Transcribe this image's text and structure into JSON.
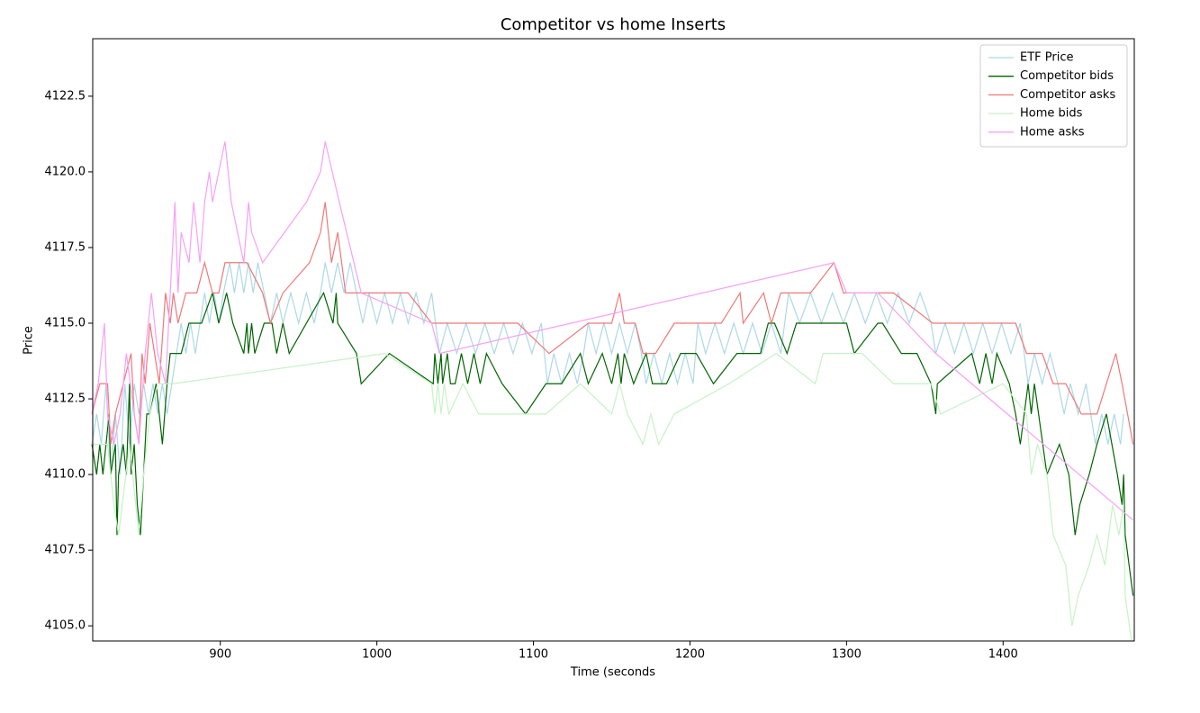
{
  "chart_data": {
    "type": "line",
    "title": "Competitor vs home Inserts",
    "x_label": "Time (seconds",
    "y_label": "Price",
    "xlim": [
      818.5,
      1483.8
    ],
    "ylim": [
      4104.5,
      4124.4
    ],
    "xticks": [
      900,
      1000,
      1100,
      1200,
      1300,
      1400
    ],
    "yticks": [
      {
        "value": 4105,
        "label": "4105.0"
      },
      {
        "value": 4107.5,
        "label": "4107.5"
      },
      {
        "value": 4110,
        "label": "4110.0"
      },
      {
        "value": 4112.5,
        "label": "4112.5"
      },
      {
        "value": 4115,
        "label": "4115.0"
      },
      {
        "value": 4117.5,
        "label": "4117.5"
      },
      {
        "value": 4120,
        "label": "4120.0"
      },
      {
        "value": 4122.5,
        "label": "4122.5"
      }
    ],
    "legend": "upper right",
    "series": [
      {
        "name": "ETF Price",
        "color": "#add8e6",
        "x": [
          818,
          821,
          824,
          827,
          830,
          833,
          836,
          839,
          842,
          845,
          848,
          851,
          854,
          857,
          860,
          863,
          866,
          869,
          872,
          875,
          878,
          881,
          884,
          887,
          890,
          893,
          896,
          899,
          902,
          906,
          909,
          912,
          915,
          918,
          921,
          924,
          928,
          932,
          936,
          940,
          945,
          950,
          955,
          960,
          964,
          967,
          971,
          975,
          979,
          983,
          987,
          991,
          995,
          1000,
          1005,
          1010,
          1015,
          1020,
          1025,
          1030,
          1035,
          1040,
          1045,
          1051,
          1057,
          1063,
          1069,
          1075,
          1081,
          1087,
          1093,
          1099,
          1105,
          1109,
          1113,
          1118,
          1123,
          1128,
          1132,
          1135,
          1140,
          1145,
          1150,
          1155,
          1160,
          1165,
          1169,
          1172,
          1177,
          1182,
          1187,
          1192,
          1197,
          1202,
          1205,
          1210,
          1216,
          1222,
          1228,
          1234,
          1240,
          1246,
          1252,
          1258,
          1263,
          1270,
          1277,
          1284,
          1291,
          1298,
          1305,
          1312,
          1319,
          1326,
          1333,
          1340,
          1347,
          1354,
          1357,
          1363,
          1369,
          1375,
          1381,
          1387,
          1393,
          1399,
          1405,
          1411,
          1416,
          1420,
          1425,
          1430,
          1435,
          1439,
          1443,
          1448,
          1453,
          1456,
          1459,
          1463,
          1467,
          1471,
          1475,
          1477
        ],
        "values": [
          4111,
          4112,
          4111,
          4113,
          4110,
          4112,
          4110,
          4113,
          4111,
          4113,
          4112,
          4113,
          4112,
          4113,
          4112,
          4113,
          4112,
          4113,
          4114,
          4115,
          4114,
          4115,
          4114,
          4115,
          4116,
          4115,
          4116,
          4115,
          4116,
          4117,
          4116,
          4117,
          4116,
          4117,
          4116,
          4117,
          4116,
          4115,
          4116,
          4115,
          4116,
          4115,
          4116,
          4115,
          4116,
          4117,
          4116,
          4117,
          4116,
          4117,
          4116,
          4115,
          4116,
          4115,
          4116,
          4115,
          4116,
          4115,
          4116,
          4115,
          4116,
          4114,
          4115,
          4114,
          4115,
          4114,
          4115,
          4114,
          4115,
          4114,
          4115,
          4114,
          4115,
          4113,
          4114,
          4113,
          4114,
          4113,
          4114,
          4115,
          4114,
          4115,
          4114,
          4115,
          4114,
          4115,
          4114,
          4113,
          4114,
          4113,
          4114,
          4113,
          4114,
          4113,
          4115,
          4114,
          4115,
          4114,
          4115,
          4114,
          4115,
          4114,
          4115,
          4114,
          4116,
          4115,
          4116,
          4115,
          4116,
          4115,
          4116,
          4115,
          4116,
          4115,
          4116,
          4115,
          4116,
          4115,
          4114,
          4115,
          4114,
          4115,
          4114,
          4115,
          4114,
          4115,
          4114,
          4115,
          4113,
          4114,
          4113,
          4114,
          4113,
          4112,
          4113,
          4112,
          4113,
          4112,
          4111,
          4112,
          4111,
          4112,
          4111,
          4112
        ]
      },
      {
        "name": "Competitor bids",
        "color": "#006400",
        "x": [
          818,
          821,
          823,
          825,
          829,
          830,
          833,
          834,
          835,
          838,
          840,
          842,
          843,
          845,
          847,
          849,
          851,
          853,
          855,
          859,
          861,
          863,
          866,
          868,
          875,
          880,
          888,
          895,
          899,
          904,
          908,
          915,
          917,
          918,
          920,
          922,
          928,
          933,
          936,
          940,
          944,
          966,
          972,
          974,
          975,
          987,
          990,
          1008,
          1036,
          1037,
          1039,
          1041,
          1042,
          1045,
          1047,
          1050,
          1054,
          1058,
          1062,
          1066,
          1070,
          1080,
          1095,
          1108,
          1118,
          1130,
          1135,
          1144,
          1150,
          1154,
          1156,
          1158,
          1164,
          1172,
          1176,
          1185,
          1194,
          1204,
          1215,
          1230,
          1245,
          1250,
          1254,
          1262,
          1268,
          1293,
          1300,
          1305,
          1320,
          1323,
          1335,
          1345,
          1354,
          1357,
          1358,
          1380,
          1385,
          1389,
          1393,
          1396,
          1404,
          1408,
          1411,
          1416,
          1418,
          1420,
          1428,
          1436,
          1442,
          1446,
          1449,
          1455,
          1460,
          1466,
          1473,
          1476,
          1477,
          1478,
          1483
        ],
        "values": [
          4111,
          4110,
          4111,
          4110,
          4112,
          4110,
          4111,
          4108,
          4110,
          4111,
          4110,
          4113,
          4110,
          4111,
          4109,
          4108,
          4110,
          4112,
          4112,
          4113,
          4112,
          4111,
          4113,
          4114,
          4114,
          4115,
          4115,
          4116,
          4115,
          4116,
          4115,
          4114,
          4115,
          4114,
          4115,
          4114,
          4115,
          4115,
          4114,
          4115,
          4114,
          4116,
          4115,
          4116,
          4115,
          4114,
          4113,
          4114,
          4113,
          4114,
          4113,
          4114,
          4113,
          4114,
          4113,
          4113,
          4114,
          4113,
          4114,
          4113,
          4114,
          4113,
          4112,
          4113,
          4113,
          4114,
          4113,
          4114,
          4113,
          4114,
          4113,
          4114,
          4113,
          4114,
          4113,
          4113,
          4114,
          4114,
          4113,
          4114,
          4114,
          4115,
          4115,
          4114,
          4115,
          4115,
          4115,
          4114,
          4115,
          4115,
          4114,
          4114,
          4113,
          4112,
          4113,
          4114,
          4113,
          4114,
          4113,
          4114,
          4113,
          4112,
          4111,
          4113,
          4112,
          4113,
          4110,
          4111,
          4110,
          4108,
          4109,
          4110,
          4111,
          4112,
          4110,
          4109,
          4110,
          4108,
          4106
        ]
      },
      {
        "name": "Competitor asks",
        "color": "#f07878",
        "x": [
          818,
          823,
          828,
          830,
          833,
          838,
          843,
          845,
          848,
          850,
          852,
          855,
          858,
          861,
          865,
          868,
          870,
          873,
          878,
          885,
          890,
          895,
          899,
          903,
          905,
          917,
          927,
          932,
          940,
          957,
          964,
          967,
          971,
          975,
          980,
          1000,
          1020,
          1035,
          1040,
          1050,
          1065,
          1090,
          1110,
          1135,
          1150,
          1155,
          1158,
          1165,
          1170,
          1178,
          1190,
          1205,
          1220,
          1232,
          1234,
          1247,
          1252,
          1258,
          1277,
          1292,
          1298,
          1330,
          1355,
          1372,
          1408,
          1415,
          1425,
          1432,
          1440,
          1450,
          1460,
          1472,
          1476,
          1483
        ],
        "values": [
          4112,
          4113,
          4113,
          4111,
          4112,
          4113,
          4114,
          4112,
          4111,
          4114,
          4113,
          4115,
          4114,
          4113,
          4116,
          4115,
          4116,
          4115,
          4116,
          4116,
          4117,
          4116,
          4116,
          4117,
          4117,
          4117,
          4116,
          4115,
          4116,
          4117,
          4118,
          4119,
          4117,
          4118,
          4116,
          4116,
          4116,
          4115,
          4115,
          4115,
          4115,
          4115,
          4114,
          4115,
          4115,
          4116,
          4115,
          4115,
          4114,
          4114,
          4115,
          4115,
          4115,
          4116,
          4115,
          4116,
          4115,
          4116,
          4116,
          4117,
          4116,
          4116,
          4115,
          4115,
          4115,
          4114,
          4114,
          4113,
          4113,
          4112,
          4112,
          4114,
          4113,
          4111
        ]
      },
      {
        "name": "Home bids",
        "color": "#c6f2c6",
        "x": [
          818,
          825,
          828,
          832,
          835,
          842,
          846,
          848,
          851,
          855,
          860,
          870,
          1005,
          1035,
          1037,
          1039,
          1041,
          1043,
          1046,
          1055,
          1065,
          1085,
          1108,
          1130,
          1150,
          1155,
          1160,
          1170,
          1175,
          1180,
          1190,
          1225,
          1255,
          1280,
          1285,
          1310,
          1330,
          1354,
          1360,
          1400,
          1415,
          1418,
          1422,
          1428,
          1432,
          1440,
          1444,
          1448,
          1455,
          1460,
          1465,
          1470,
          1474,
          1477,
          1478,
          1482
        ],
        "values": [
          4111,
          4111,
          4111,
          4109,
          4108,
          4111,
          4109,
          4108,
          4110,
          4112,
          4113,
          4113,
          4114,
          4113,
          4112,
          4113,
          4112,
          4113,
          4112,
          4113,
          4112,
          4112,
          4112,
          4113,
          4112,
          4113,
          4112,
          4111,
          4112,
          4111,
          4112,
          4113,
          4114,
          4113,
          4114,
          4114,
          4113,
          4113,
          4112,
          4113,
          4112,
          4110,
          4111,
          4110,
          4108,
          4107,
          4105,
          4106,
          4107,
          4108,
          4107,
          4109,
          4108,
          4109,
          4106,
          4104.5
        ]
      },
      {
        "name": "Home asks",
        "color": "#f7a0f7",
        "x": [
          818,
          822,
          826,
          828,
          832,
          836,
          840,
          845,
          848,
          852,
          856,
          860,
          865,
          869,
          871,
          873,
          875,
          880,
          883,
          887,
          890,
          893,
          895,
          899,
          903,
          907,
          915,
          918,
          920,
          927,
          955,
          964,
          967,
          976,
          990,
          1035,
          1040,
          1292,
          1300,
          1320,
          1357,
          1483
        ],
        "values": [
          4112,
          4113,
          4115,
          4112,
          4111,
          4112,
          4114,
          4112,
          4111,
          4114,
          4116,
          4114,
          4113,
          4117,
          4119,
          4116,
          4118,
          4117,
          4119,
          4117,
          4119,
          4120,
          4119,
          4120,
          4121,
          4119,
          4117,
          4119,
          4118,
          4117,
          4119,
          4120,
          4121,
          4119,
          4116,
          4115,
          4114,
          4117,
          4116,
          4116,
          4114,
          4108.5
        ]
      }
    ]
  }
}
